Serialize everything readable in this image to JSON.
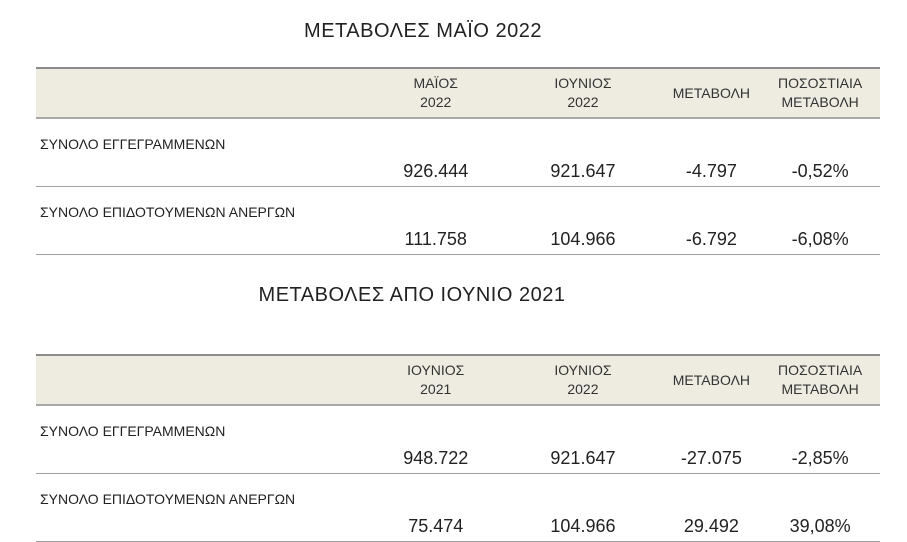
{
  "sections": [
    {
      "title": "ΜΕΤΑΒΟΛΕΣ ΜΑΪΟ 2022",
      "headers": [
        "",
        "ΜΑΪΟΣ\n2022",
        "ΙΟΥΝΙΟΣ\n2022",
        "ΜΕΤΑΒΟΛΗ",
        "ΠΟΣΟΣΤΙΑΙΑ\nΜΕΤΑΒΟΛΗ"
      ],
      "rows": [
        [
          "ΣΥΝΟΛΟ ΕΓΓΕΓΡΑΜΜΕΝΩΝ",
          "926.444",
          "921.647",
          "-4.797",
          "-0,52%"
        ],
        [
          "ΣΥΝΟΛΟ ΕΠΙΔΟΤΟΥΜΕΝΩΝ ΑΝΕΡΓΩΝ",
          "111.758",
          "104.966",
          "-6.792",
          "-6,08%"
        ]
      ]
    },
    {
      "title": "ΜΕΤΑΒΟΛΕΣ ΑΠΟ ΙΟΥΝΙΟ 2021",
      "headers": [
        "",
        "ΙΟΥΝΙΟΣ\n2021",
        "ΙΟΥΝΙΟΣ\n2022",
        "ΜΕΤΑΒΟΛΗ",
        "ΠΟΣΟΣΤΙΑΙΑ\nΜΕΤΑΒΟΛΗ"
      ],
      "rows": [
        [
          "ΣΥΝΟΛΟ ΕΓΓΕΓΡΑΜΜΕΝΩΝ",
          "948.722",
          "921.647",
          "-27.075",
          "-2,85%"
        ],
        [
          "ΣΥΝΟΛΟ ΕΠΙΔΟΤΟΥΜΕΝΩΝ ΑΝΕΡΓΩΝ",
          "75.474",
          "104.966",
          "29.492",
          "39,08%"
        ]
      ]
    }
  ]
}
